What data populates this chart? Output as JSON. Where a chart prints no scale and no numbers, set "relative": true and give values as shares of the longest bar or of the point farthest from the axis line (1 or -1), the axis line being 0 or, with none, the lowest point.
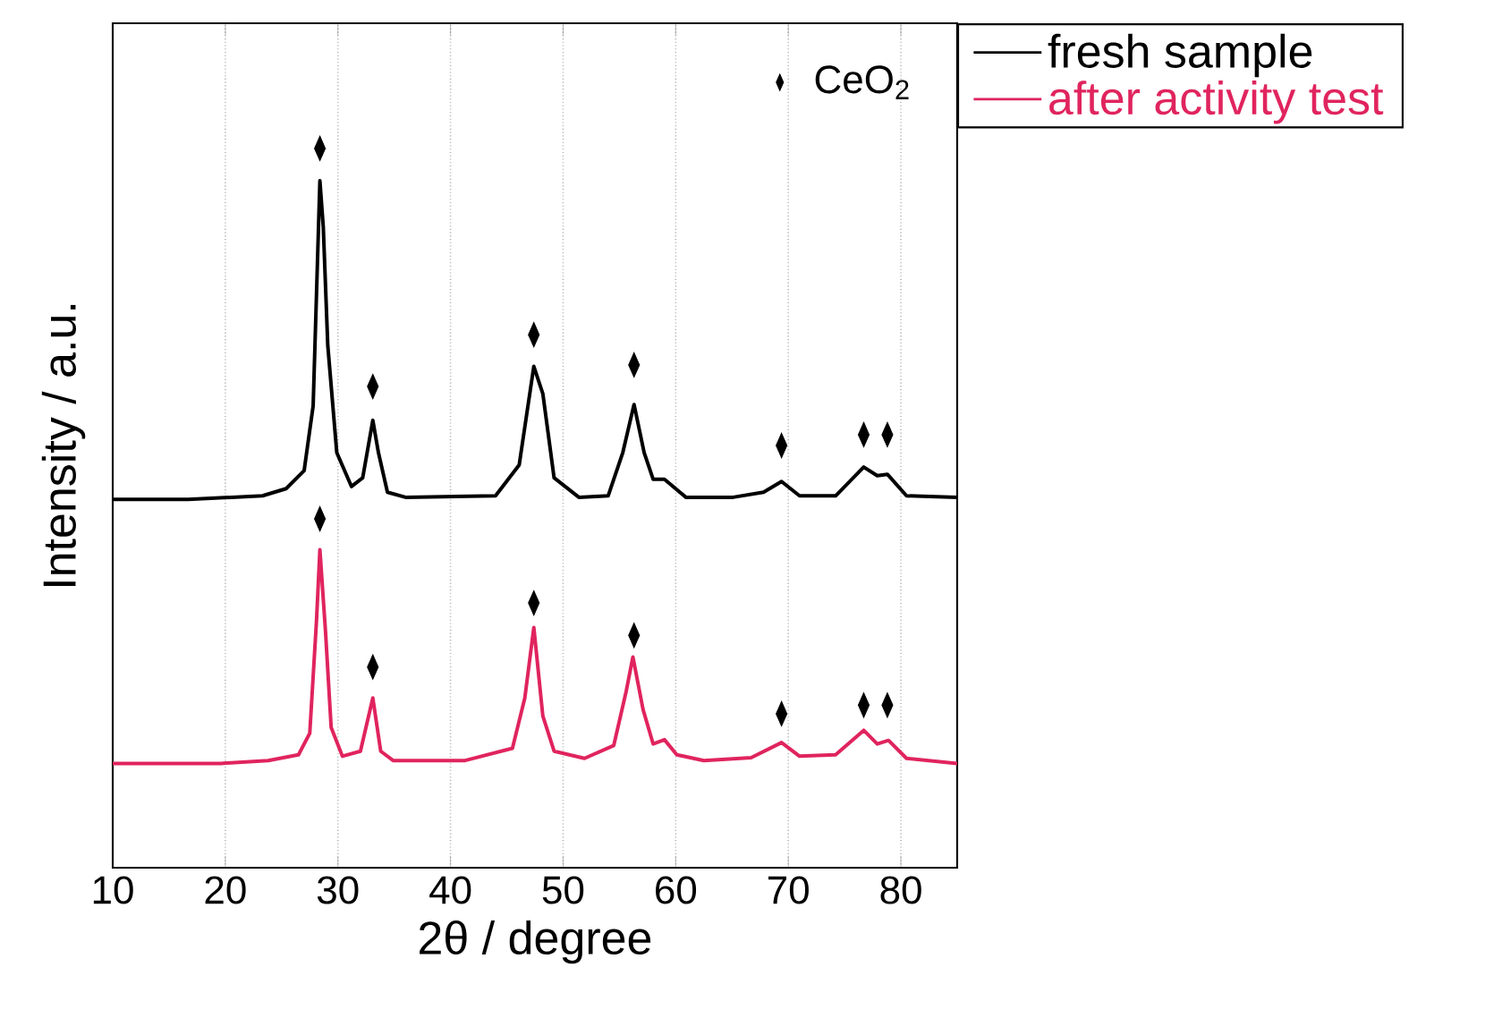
{
  "chart_data": {
    "type": "line",
    "relative": true,
    "xlabel": "2θ / degree",
    "ylabel": "Intensity / a.u.",
    "xlim": [
      10,
      85
    ],
    "xticks": [
      10,
      20,
      30,
      40,
      50,
      60,
      70,
      80
    ],
    "grid": "x",
    "legend": "right",
    "tick_labels": "x",
    "series": [
      {
        "name": "fresh sample",
        "color": "#000000",
        "x": [
          10,
          16.7,
          23.3,
          25.4,
          27.0,
          27.8,
          28.2,
          28.4,
          28.7,
          29.1,
          29.9,
          31.2,
          32.2,
          33.1,
          33.6,
          34.4,
          36.0,
          44.0,
          46.1,
          47.4,
          48.2,
          49.2,
          51.4,
          54.0,
          55.3,
          56.3,
          57.2,
          58.0,
          59.0,
          60.9,
          65.1,
          67.8,
          69.4,
          71.0,
          74.2,
          76.7,
          77.9,
          78.8,
          80.5,
          85.0
        ],
        "values": [
          0.512,
          0.512,
          0.517,
          0.527,
          0.552,
          0.642,
          0.851,
          0.955,
          0.891,
          0.726,
          0.577,
          0.53,
          0.542,
          0.622,
          0.577,
          0.522,
          0.515,
          0.517,
          0.56,
          0.697,
          0.659,
          0.542,
          0.515,
          0.517,
          0.577,
          0.644,
          0.577,
          0.54,
          0.54,
          0.515,
          0.515,
          0.522,
          0.537,
          0.517,
          0.517,
          0.557,
          0.545,
          0.547,
          0.517,
          0.515
        ]
      },
      {
        "name": "after activity test",
        "color": "#e0245e",
        "x": [
          10,
          19.6,
          23.8,
          26.5,
          27.5,
          28.1,
          28.4,
          28.9,
          29.4,
          30.4,
          32.0,
          33.1,
          33.8,
          34.9,
          41.3,
          45.5,
          46.6,
          47.4,
          48.2,
          49.2,
          51.9,
          54.5,
          55.6,
          56.2,
          57.1,
          58.0,
          59.0,
          60.1,
          62.5,
          66.7,
          69.4,
          71.0,
          74.2,
          76.7,
          77.9,
          78.9,
          80.5,
          85.0
        ],
        "values": [
          0.145,
          0.145,
          0.149,
          0.157,
          0.187,
          0.344,
          0.442,
          0.328,
          0.195,
          0.155,
          0.162,
          0.236,
          0.162,
          0.149,
          0.149,
          0.166,
          0.236,
          0.334,
          0.211,
          0.162,
          0.152,
          0.17,
          0.245,
          0.293,
          0.22,
          0.172,
          0.178,
          0.157,
          0.149,
          0.153,
          0.174,
          0.155,
          0.157,
          0.191,
          0.172,
          0.177,
          0.152,
          0.145
        ]
      },
      {
        "name": "CeO$_{2}$",
        "type": "scatter",
        "marker": "diamond",
        "color": "#000000",
        "x": [
          28.4,
          33.1,
          47.4,
          56.3,
          69.4,
          76.7,
          78.8,
          28.4,
          33.1,
          47.4,
          56.3,
          69.4,
          76.7,
          78.8
        ],
        "values": [
          1.0,
          0.669,
          0.741,
          0.699,
          0.587,
          0.602,
          0.602,
          0.485,
          0.279,
          0.368,
          0.323,
          0.214,
          0.226,
          0.226
        ]
      }
    ]
  }
}
